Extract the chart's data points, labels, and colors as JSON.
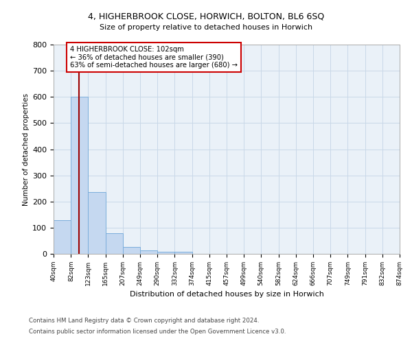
{
  "title_line1": "4, HIGHERBROOK CLOSE, HORWICH, BOLTON, BL6 6SQ",
  "title_line2": "Size of property relative to detached houses in Horwich",
  "xlabel": "Distribution of detached houses by size in Horwich",
  "ylabel": "Number of detached properties",
  "footer_line1": "Contains HM Land Registry data © Crown copyright and database right 2024.",
  "footer_line2": "Contains public sector information licensed under the Open Government Licence v3.0.",
  "bin_edges": [
    40,
    82,
    123,
    165,
    207,
    249,
    290,
    332,
    374,
    415,
    457,
    499,
    540,
    582,
    624,
    666,
    707,
    749,
    791,
    832,
    874
  ],
  "bar_heights": [
    128,
    600,
    235,
    78,
    25,
    12,
    9,
    7,
    0,
    0,
    0,
    0,
    0,
    0,
    0,
    0,
    0,
    0,
    0,
    0
  ],
  "bar_color": "#c5d8f0",
  "bar_edge_color": "#7aaddb",
  "grid_color": "#c8d8e8",
  "background_color": "#eaf1f8",
  "property_size": 102,
  "property_line_color": "#9b0000",
  "annotation_text": "4 HIGHERBROOK CLOSE: 102sqm\n← 36% of detached houses are smaller (390)\n63% of semi-detached houses are larger (680) →",
  "annotation_box_color": "#ffffff",
  "annotation_box_edge_color": "#cc0000",
  "ylim": [
    0,
    800
  ],
  "yticks": [
    0,
    100,
    200,
    300,
    400,
    500,
    600,
    700,
    800
  ]
}
